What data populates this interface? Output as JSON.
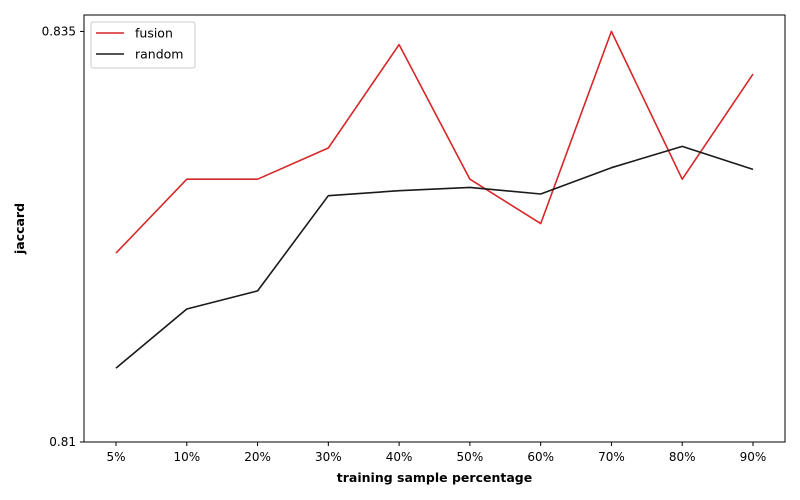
{
  "chart_data": {
    "type": "line",
    "title": "",
    "xlabel": "training sample percentage",
    "ylabel": "jaccard",
    "categories": [
      "5%",
      "10%",
      "20%",
      "30%",
      "40%",
      "50%",
      "60%",
      "70%",
      "80%",
      "90%"
    ],
    "series": [
      {
        "name": "fusion",
        "color": "#d62728",
        "values": [
          0.8215,
          0.826,
          0.826,
          0.8279,
          0.8342,
          0.826,
          0.8233,
          0.835,
          0.826,
          0.8324
        ]
      },
      {
        "name": "random",
        "color": "#1a1a1a",
        "values": [
          0.8145,
          0.8181,
          0.8192,
          0.825,
          0.8253,
          0.8255,
          0.8251,
          0.8267,
          0.828,
          0.8266
        ]
      }
    ],
    "ylim": [
      0.81,
      0.836
    ],
    "yticks": [
      0.81,
      0.835
    ],
    "ytick_labels": [
      "0.81",
      "0.835"
    ],
    "grid": false,
    "legend_position": "top-left"
  }
}
